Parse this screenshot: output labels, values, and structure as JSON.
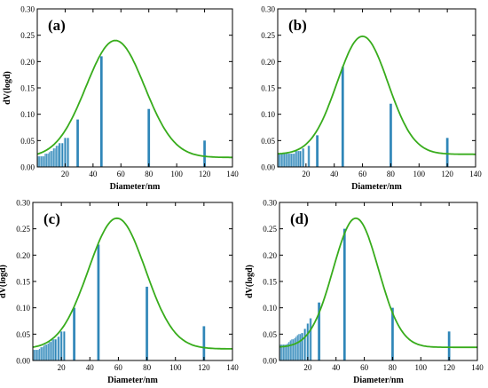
{
  "chart_data": [
    {
      "type": "bar",
      "panel_label": "(a)",
      "xlabel": "Diameter/nm",
      "ylabel": "dV(logd)",
      "xlim": [
        0,
        140
      ],
      "ylim": [
        0,
        0.3
      ],
      "xticks": [
        20,
        40,
        60,
        80,
        100,
        120,
        140
      ],
      "yticks": [
        0.0,
        0.05,
        0.1,
        0.15,
        0.2,
        0.25,
        0.3
      ],
      "bars": [
        {
          "x": 1,
          "y": 0.02
        },
        {
          "x": 2,
          "y": 0.02
        },
        {
          "x": 3,
          "y": 0.02
        },
        {
          "x": 4,
          "y": 0.02
        },
        {
          "x": 5,
          "y": 0.02
        },
        {
          "x": 6,
          "y": 0.025
        },
        {
          "x": 7,
          "y": 0.025
        },
        {
          "x": 8,
          "y": 0.025
        },
        {
          "x": 9,
          "y": 0.028
        },
        {
          "x": 10,
          "y": 0.03
        },
        {
          "x": 11,
          "y": 0.03
        },
        {
          "x": 12,
          "y": 0.035
        },
        {
          "x": 13,
          "y": 0.035
        },
        {
          "x": 14,
          "y": 0.04
        },
        {
          "x": 15,
          "y": 0.04
        },
        {
          "x": 16,
          "y": 0.045
        },
        {
          "x": 18,
          "y": 0.045
        },
        {
          "x": 20,
          "y": 0.055
        },
        {
          "x": 22,
          "y": 0.055
        },
        {
          "x": 29,
          "y": 0.09
        },
        {
          "x": 46,
          "y": 0.21
        },
        {
          "x": 80,
          "y": 0.11
        },
        {
          "x": 120,
          "y": 0.05
        }
      ],
      "fit": {
        "baseline": 0.018,
        "amplitude": 0.222,
        "center": 56,
        "width": 21
      }
    },
    {
      "type": "bar",
      "panel_label": "(b)",
      "xlabel": "Diameter/nm",
      "ylabel": "",
      "xlim": [
        0,
        140
      ],
      "ylim": [
        0,
        0.3
      ],
      "xticks": [
        20,
        40,
        60,
        80,
        100,
        120,
        140
      ],
      "yticks": [
        0.0,
        0.05,
        0.1,
        0.15,
        0.2,
        0.25,
        0.3
      ],
      "bars": [
        {
          "x": 1,
          "y": 0.025
        },
        {
          "x": 2,
          "y": 0.025
        },
        {
          "x": 3,
          "y": 0.025
        },
        {
          "x": 4,
          "y": 0.025
        },
        {
          "x": 5,
          "y": 0.025
        },
        {
          "x": 6,
          "y": 0.025
        },
        {
          "x": 7,
          "y": 0.025
        },
        {
          "x": 8,
          "y": 0.025
        },
        {
          "x": 9,
          "y": 0.025
        },
        {
          "x": 10,
          "y": 0.025
        },
        {
          "x": 11,
          "y": 0.025
        },
        {
          "x": 12,
          "y": 0.025
        },
        {
          "x": 13,
          "y": 0.03
        },
        {
          "x": 14,
          "y": 0.03
        },
        {
          "x": 15,
          "y": 0.03
        },
        {
          "x": 16,
          "y": 0.03
        },
        {
          "x": 18,
          "y": 0.035
        },
        {
          "x": 22,
          "y": 0.04
        },
        {
          "x": 28,
          "y": 0.06
        },
        {
          "x": 46,
          "y": 0.19
        },
        {
          "x": 80,
          "y": 0.12
        },
        {
          "x": 120,
          "y": 0.055
        }
      ],
      "fit": {
        "baseline": 0.024,
        "amplitude": 0.224,
        "center": 60,
        "width": 18
      }
    },
    {
      "type": "bar",
      "panel_label": "(c)",
      "xlabel": "Diameter/nm",
      "ylabel": "dV(logd)",
      "xlim": [
        0,
        140
      ],
      "ylim": [
        0,
        0.3
      ],
      "xticks": [
        20,
        40,
        60,
        80,
        100,
        120,
        140
      ],
      "yticks": [
        0.0,
        0.05,
        0.1,
        0.15,
        0.2,
        0.25,
        0.3
      ],
      "bars": [
        {
          "x": 1,
          "y": 0.02
        },
        {
          "x": 2,
          "y": 0.02
        },
        {
          "x": 3,
          "y": 0.02
        },
        {
          "x": 4,
          "y": 0.02
        },
        {
          "x": 5,
          "y": 0.022
        },
        {
          "x": 6,
          "y": 0.025
        },
        {
          "x": 7,
          "y": 0.025
        },
        {
          "x": 8,
          "y": 0.028
        },
        {
          "x": 9,
          "y": 0.03
        },
        {
          "x": 10,
          "y": 0.03
        },
        {
          "x": 11,
          "y": 0.032
        },
        {
          "x": 12,
          "y": 0.035
        },
        {
          "x": 13,
          "y": 0.035
        },
        {
          "x": 14,
          "y": 0.04
        },
        {
          "x": 15,
          "y": 0.04
        },
        {
          "x": 16,
          "y": 0.04
        },
        {
          "x": 18,
          "y": 0.045
        },
        {
          "x": 20,
          "y": 0.055
        },
        {
          "x": 22,
          "y": 0.055
        },
        {
          "x": 29,
          "y": 0.1
        },
        {
          "x": 46,
          "y": 0.22
        },
        {
          "x": 80,
          "y": 0.14
        },
        {
          "x": 120,
          "y": 0.065
        }
      ],
      "fit": {
        "baseline": 0.022,
        "amplitude": 0.248,
        "center": 59,
        "width": 20
      }
    },
    {
      "type": "bar",
      "panel_label": "(d)",
      "xlabel": "Diameter/nm",
      "ylabel": "dV(logd)",
      "xlim": [
        0,
        140
      ],
      "ylim": [
        0,
        0.3
      ],
      "xticks": [
        20,
        40,
        60,
        80,
        100,
        120,
        140
      ],
      "yticks": [
        0.0,
        0.05,
        0.1,
        0.15,
        0.2,
        0.25,
        0.3
      ],
      "bars": [
        {
          "x": 1,
          "y": 0.03
        },
        {
          "x": 2,
          "y": 0.03
        },
        {
          "x": 3,
          "y": 0.03
        },
        {
          "x": 4,
          "y": 0.03
        },
        {
          "x": 5,
          "y": 0.03
        },
        {
          "x": 6,
          "y": 0.032
        },
        {
          "x": 7,
          "y": 0.035
        },
        {
          "x": 8,
          "y": 0.038
        },
        {
          "x": 9,
          "y": 0.04
        },
        {
          "x": 10,
          "y": 0.04
        },
        {
          "x": 11,
          "y": 0.042
        },
        {
          "x": 12,
          "y": 0.045
        },
        {
          "x": 13,
          "y": 0.048
        },
        {
          "x": 14,
          "y": 0.05
        },
        {
          "x": 15,
          "y": 0.05
        },
        {
          "x": 16,
          "y": 0.052
        },
        {
          "x": 18,
          "y": 0.06
        },
        {
          "x": 20,
          "y": 0.07
        },
        {
          "x": 22,
          "y": 0.08
        },
        {
          "x": 28,
          "y": 0.11
        },
        {
          "x": 46,
          "y": 0.25
        },
        {
          "x": 80,
          "y": 0.1
        },
        {
          "x": 120,
          "y": 0.055
        }
      ],
      "fit": {
        "baseline": 0.025,
        "amplitude": 0.245,
        "center": 54,
        "width": 16
      }
    }
  ],
  "colors": {
    "bar": "#2f86b8",
    "bar_light": "#b9d9ea",
    "fit_line": "#38ac1c",
    "axis": "#000000"
  }
}
